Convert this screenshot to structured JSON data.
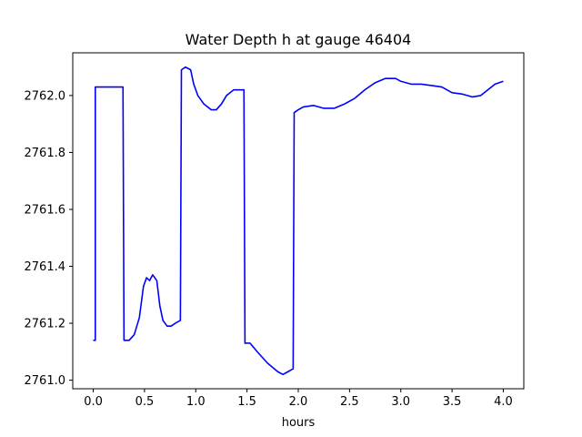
{
  "chart_data": {
    "type": "line",
    "title": "Water Depth h at gauge 46404",
    "xlabel": "hours",
    "ylabel": "",
    "xlim": [
      -0.2,
      4.2
    ],
    "ylim": [
      2760.97,
      2762.15
    ],
    "xticks": [
      0.0,
      0.5,
      1.0,
      1.5,
      2.0,
      2.5,
      3.0,
      3.5,
      4.0
    ],
    "xtick_labels": [
      "0.0",
      "0.5",
      "1.0",
      "1.5",
      "2.0",
      "2.5",
      "3.0",
      "3.5",
      "4.0"
    ],
    "yticks": [
      2761.0,
      2761.2,
      2761.4,
      2761.6,
      2761.8,
      2762.0
    ],
    "ytick_labels": [
      "2761.0",
      "2761.2",
      "2761.4",
      "2761.6",
      "2761.8",
      "2762.0"
    ],
    "grid": false,
    "series": [
      {
        "color": "#0000ff",
        "x": [
          0.0,
          0.02,
          0.02,
          0.1,
          0.2,
          0.29,
          0.3,
          0.35,
          0.4,
          0.45,
          0.49,
          0.52,
          0.55,
          0.58,
          0.62,
          0.65,
          0.68,
          0.72,
          0.76,
          0.8,
          0.85,
          0.86,
          0.9,
          0.95,
          0.98,
          1.02,
          1.08,
          1.15,
          1.2,
          1.25,
          1.3,
          1.37,
          1.43,
          1.47,
          1.48,
          1.53,
          1.6,
          1.7,
          1.8,
          1.85,
          1.9,
          1.95,
          1.96,
          2.0,
          2.05,
          2.15,
          2.25,
          2.35,
          2.45,
          2.55,
          2.65,
          2.75,
          2.85,
          2.95,
          3.0,
          3.1,
          3.2,
          3.3,
          3.4,
          3.5,
          3.6,
          3.7,
          3.78,
          3.85,
          3.92,
          4.0
        ],
        "y": [
          2761.14,
          2761.14,
          2762.03,
          2762.03,
          2762.03,
          2762.03,
          2761.14,
          2761.14,
          2761.16,
          2761.22,
          2761.33,
          2761.36,
          2761.35,
          2761.37,
          2761.35,
          2761.26,
          2761.21,
          2761.19,
          2761.19,
          2761.2,
          2761.21,
          2762.09,
          2762.1,
          2762.09,
          2762.04,
          2762.0,
          2761.97,
          2761.95,
          2761.95,
          2761.97,
          2762.0,
          2762.02,
          2762.02,
          2762.02,
          2761.13,
          2761.13,
          2761.1,
          2761.06,
          2761.03,
          2761.02,
          2761.03,
          2761.04,
          2761.94,
          2761.95,
          2761.96,
          2761.965,
          2761.955,
          2761.955,
          2761.97,
          2761.99,
          2762.02,
          2762.045,
          2762.06,
          2762.06,
          2762.05,
          2762.04,
          2762.04,
          2762.035,
          2762.03,
          2762.01,
          2762.005,
          2761.995,
          2762.0,
          2762.02,
          2762.04,
          2762.05
        ]
      }
    ]
  }
}
